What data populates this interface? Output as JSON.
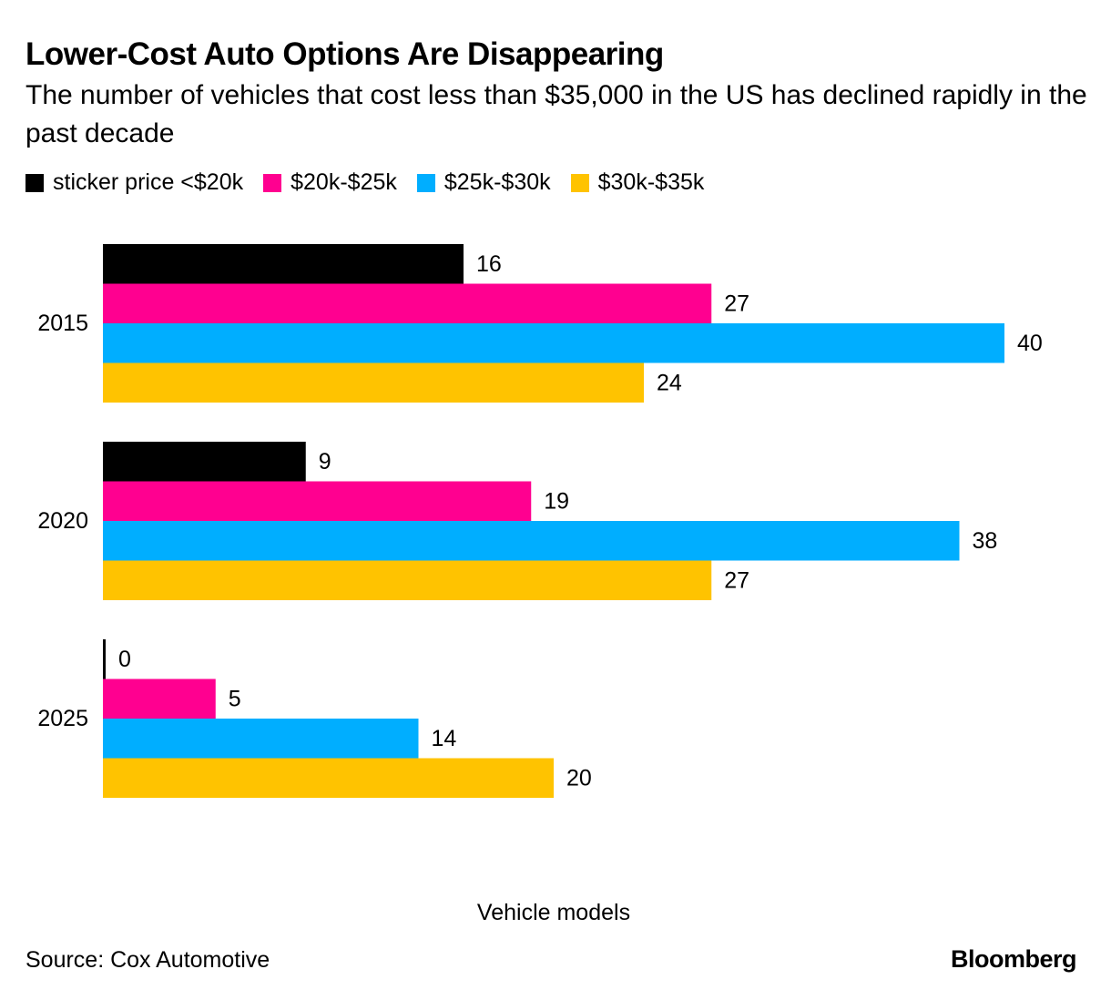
{
  "title": "Lower-Cost Auto Options Are Disappearing",
  "subtitle": "The number of vehicles that cost less than $35,000 in the US has declined rapidly in the past decade",
  "source": "Source: Cox Automotive",
  "brand": "Bloomberg",
  "chart_data": {
    "type": "bar",
    "orientation": "horizontal",
    "categories": [
      "2015",
      "2020",
      "2025"
    ],
    "series": [
      {
        "name": "sticker price <$20k",
        "color": "#000000",
        "values": [
          16,
          9,
          0
        ]
      },
      {
        "name": "$20k-$25k",
        "color": "#ff0090",
        "values": [
          27,
          19,
          5
        ]
      },
      {
        "name": "$25k-$30k",
        "color": "#00aeff",
        "values": [
          40,
          38,
          14
        ]
      },
      {
        "name": "$30k-$35k",
        "color": "#ffc300",
        "values": [
          24,
          27,
          20
        ]
      }
    ],
    "xlabel": "Vehicle models",
    "ylabel": "",
    "xlim": [
      0,
      40
    ],
    "grid": false,
    "legend": "top-left",
    "data_labels": true
  }
}
